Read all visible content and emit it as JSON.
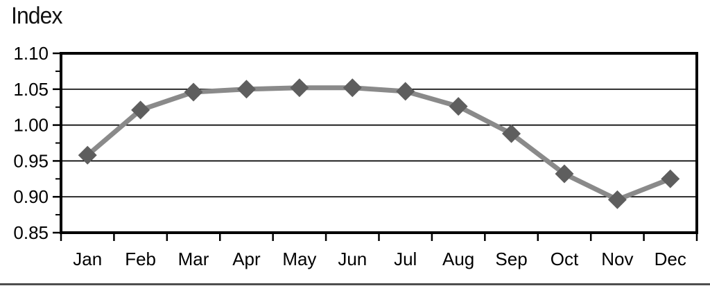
{
  "page": {
    "background": "#ffffff"
  },
  "chart_data": {
    "type": "line",
    "title": "Index",
    "categories": [
      "Jan",
      "Feb",
      "Mar",
      "Apr",
      "May",
      "Jun",
      "Jul",
      "Aug",
      "Sep",
      "Oct",
      "Nov",
      "Dec"
    ],
    "series": [
      {
        "name": "Index",
        "values": [
          0.958,
          1.021,
          1.046,
          1.05,
          1.052,
          1.052,
          1.047,
          1.026,
          0.988,
          0.932,
          0.896,
          0.925
        ]
      }
    ],
    "xlabel": "",
    "ylabel": "Index",
    "ylim": [
      0.85,
      1.1
    ],
    "y_major_step": 0.05,
    "y_minor_step": 0.025,
    "y_tick_labels": [
      "1.10",
      "1.05",
      "1.00",
      "0.95",
      "0.90",
      "0.85"
    ],
    "grid": "horizontal-major",
    "legend": "none",
    "marker": "diamond",
    "colors": {
      "line": "#8a8a8a",
      "marker": "#5e5e5e",
      "grid": "#000000",
      "axis": "#000000",
      "text": "#000000"
    }
  }
}
